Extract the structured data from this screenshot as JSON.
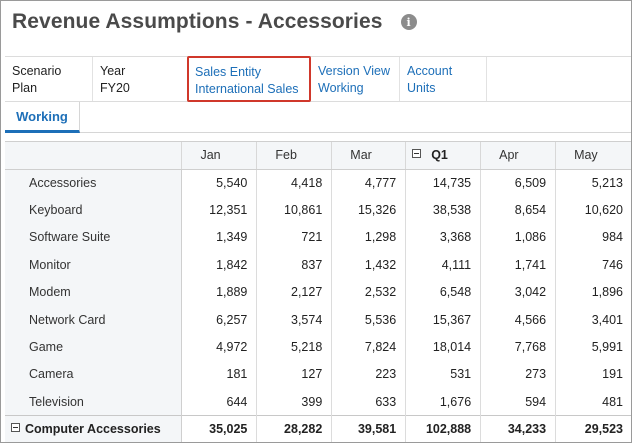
{
  "page": {
    "title": "Revenue Assumptions - Accessories",
    "info_icon": "info-icon"
  },
  "pov": [
    {
      "line1": "Scenario",
      "line2": "Plan",
      "kind": "static"
    },
    {
      "line1": "Year",
      "line2": "FY20",
      "kind": "static"
    },
    {
      "line1": "Sales Entity",
      "line2": "International Sales",
      "kind": "link",
      "selected": true
    },
    {
      "line1": "Version View",
      "line2": "Working",
      "kind": "link"
    },
    {
      "line1": "Account",
      "line2": "Units",
      "kind": "link"
    }
  ],
  "tabs": [
    {
      "label": "Working",
      "active": true
    }
  ],
  "grid": {
    "columns": [
      "Jan",
      "Feb",
      "Mar",
      "Q1",
      "Apr",
      "May"
    ],
    "collapsed_column": "Q1",
    "rows": [
      {
        "label": "Accessories",
        "values": [
          "5,540",
          "4,418",
          "4,777",
          "14,735",
          "6,509",
          "5,213"
        ]
      },
      {
        "label": "Keyboard",
        "values": [
          "12,351",
          "10,861",
          "15,326",
          "38,538",
          "8,654",
          "10,620"
        ]
      },
      {
        "label": "Software Suite",
        "values": [
          "1,349",
          "721",
          "1,298",
          "3,368",
          "1,086",
          "984"
        ]
      },
      {
        "label": "Monitor",
        "values": [
          "1,842",
          "837",
          "1,432",
          "4,111",
          "1,741",
          "746"
        ]
      },
      {
        "label": "Modem",
        "values": [
          "1,889",
          "2,127",
          "2,532",
          "6,548",
          "3,042",
          "1,896"
        ]
      },
      {
        "label": "Network Card",
        "values": [
          "6,257",
          "3,574",
          "5,536",
          "15,367",
          "4,566",
          "3,401"
        ]
      },
      {
        "label": "Game",
        "values": [
          "4,972",
          "5,218",
          "7,824",
          "18,014",
          "7,768",
          "5,991"
        ]
      },
      {
        "label": "Camera",
        "values": [
          "181",
          "127",
          "223",
          "531",
          "273",
          "191"
        ]
      },
      {
        "label": "Television",
        "values": [
          "644",
          "399",
          "633",
          "1,676",
          "594",
          "481"
        ]
      }
    ],
    "total": {
      "label": "Computer Accessories",
      "values": [
        "35,025",
        "28,282",
        "39,581",
        "102,888",
        "34,233",
        "29,523"
      ]
    }
  },
  "colors": {
    "link": "#1d6fb8",
    "selected_border": "#d0382b",
    "header_bg": "#f4f6f8"
  }
}
